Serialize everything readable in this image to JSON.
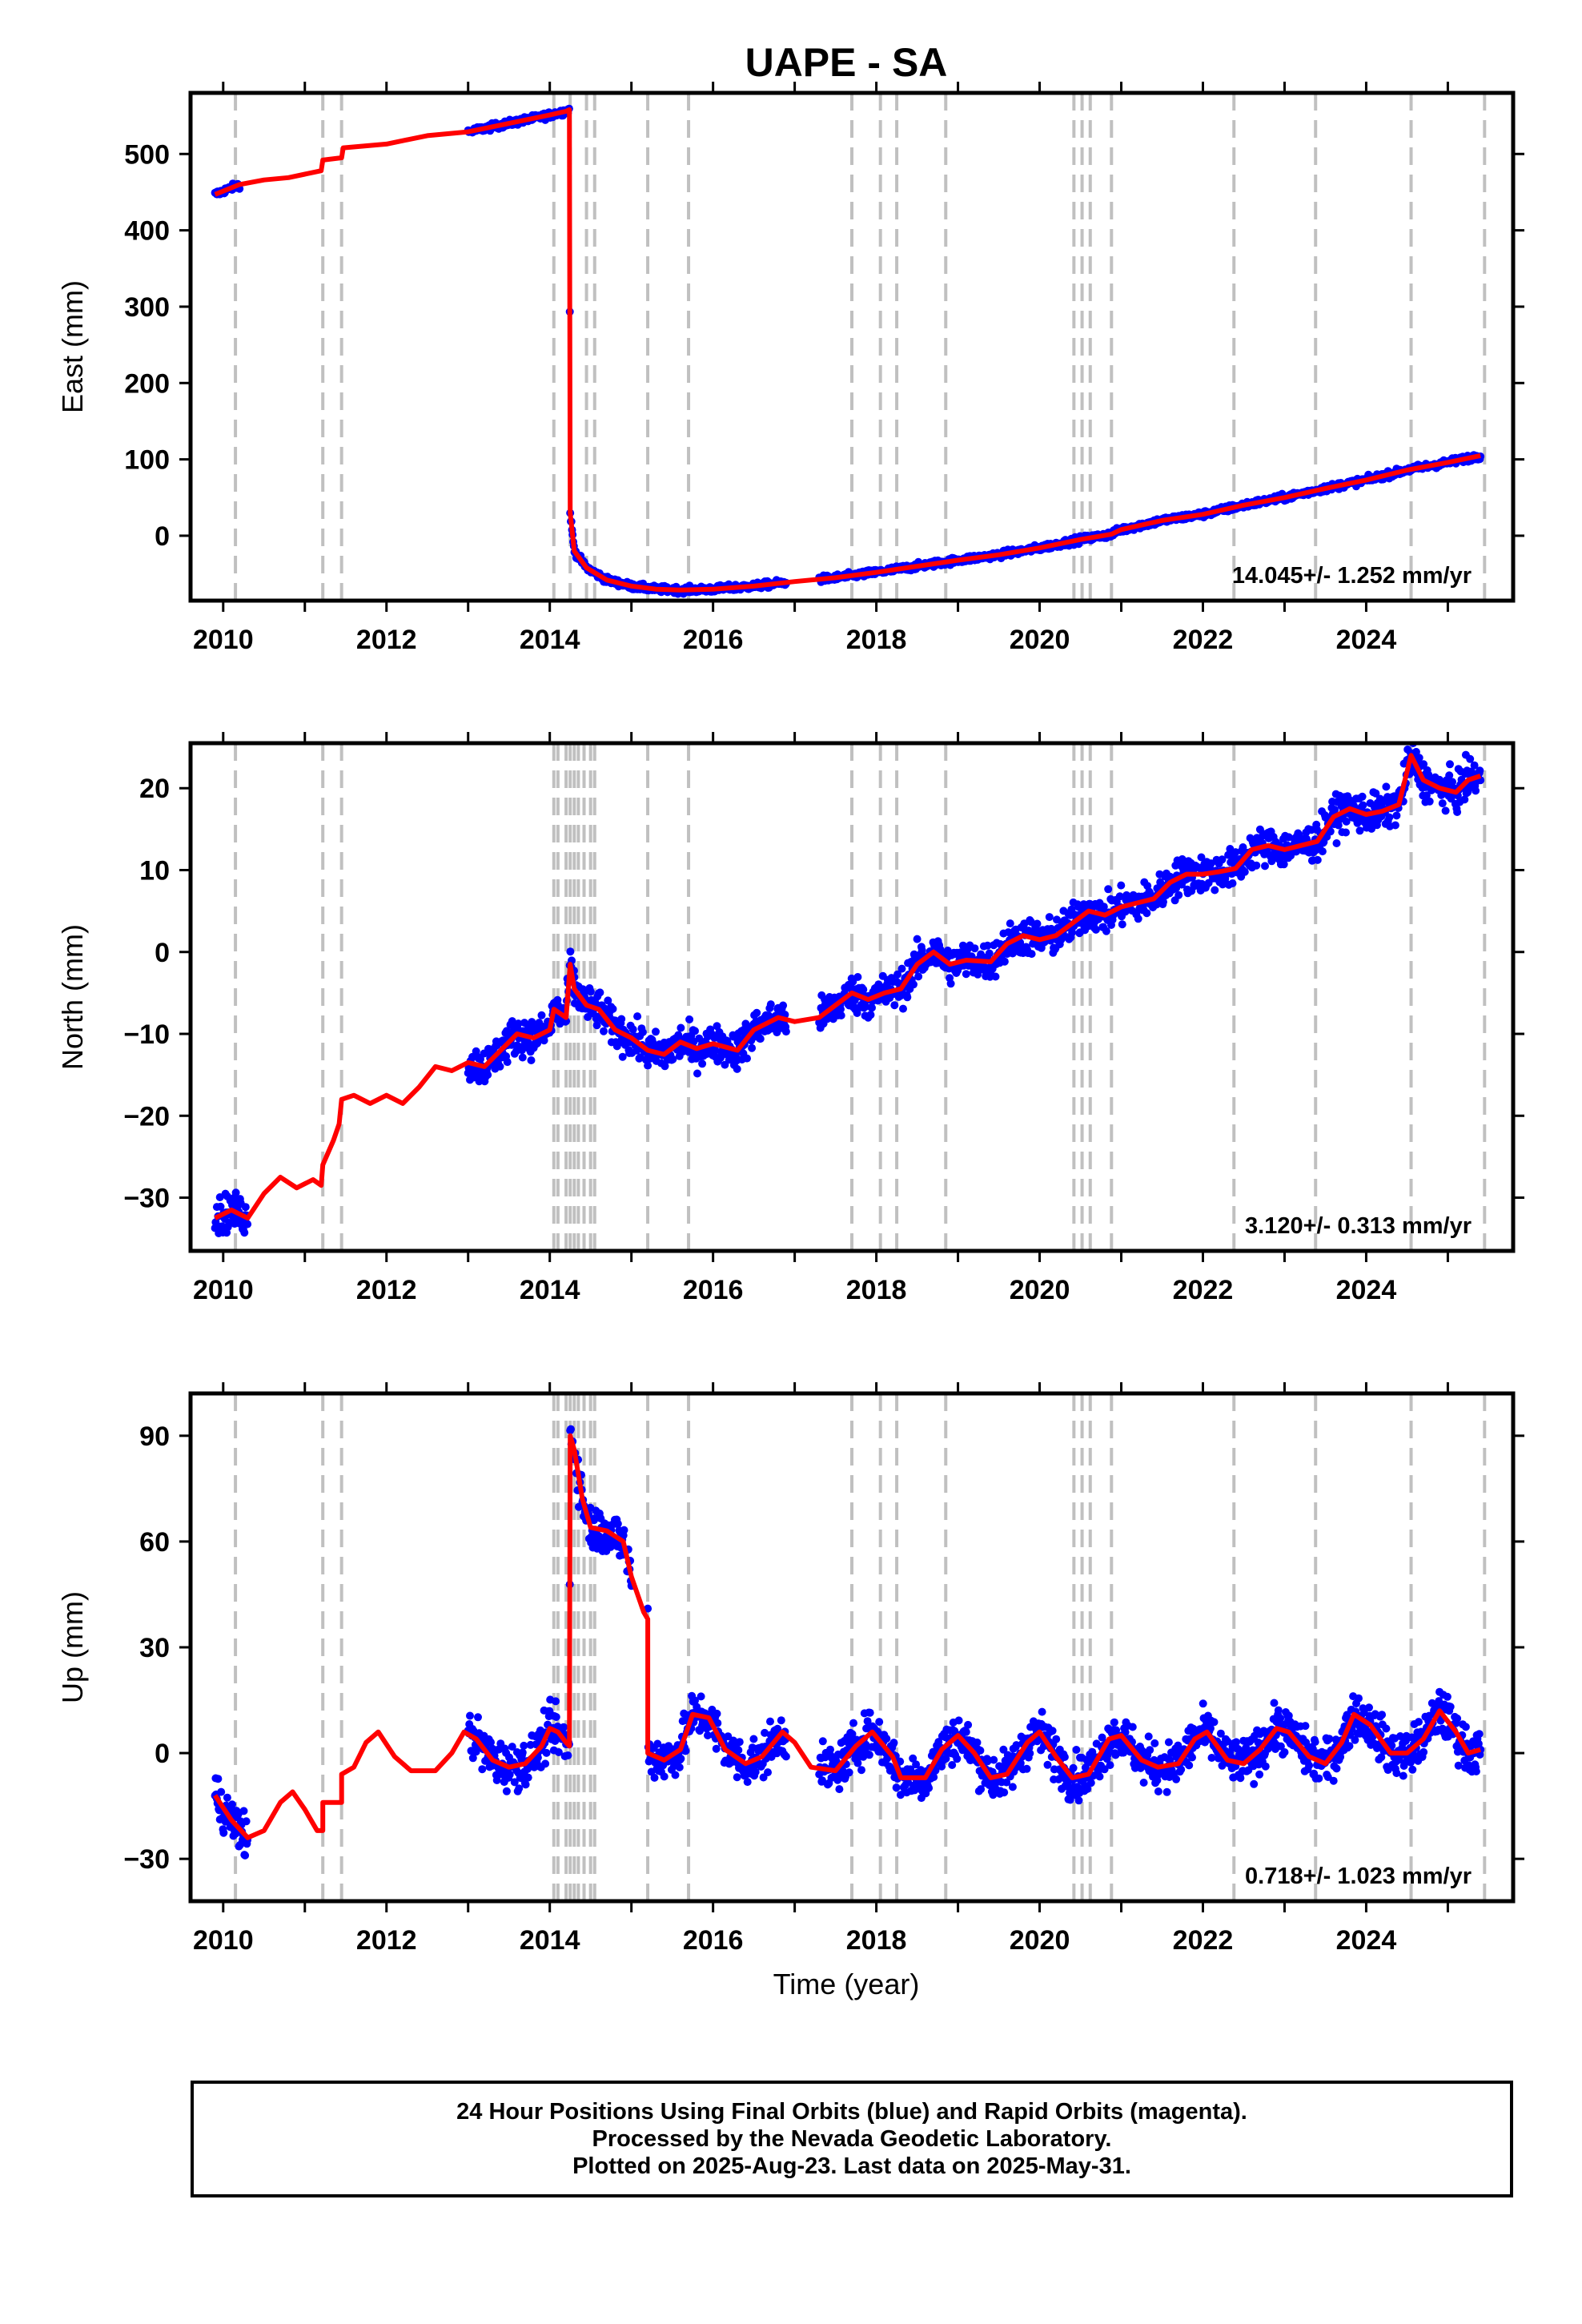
{
  "title": "UAPE - SA",
  "x_axis_label": "Time (year)",
  "x_tick_labels": [
    "2010",
    "2012",
    "2014",
    "2016",
    "2018",
    "2020",
    "2022",
    "2024"
  ],
  "caption": {
    "line1": "24 Hour Positions Using Final Orbits (blue) and Rapid Orbits (magenta).",
    "line2": "Processed by the Nevada Geodetic Laboratory.",
    "line3": "Plotted on 2025-Aug-23. Last data on 2025-May-31."
  },
  "colors": {
    "observations": "#0000ff",
    "model": "#ff0000",
    "events": "#c0c0c0",
    "frame": "#000000"
  },
  "chart_data": [
    {
      "type": "scatter",
      "title": "UAPE - SA",
      "xlabel": "Time (year)",
      "ylabel": "East (mm)",
      "xlim": [
        2009.6,
        2025.8
      ],
      "ylim": [
        -85,
        580
      ],
      "yticks": [
        0,
        100,
        200,
        300,
        400,
        500
      ],
      "ytick_labels": [
        "0",
        "100",
        "200",
        "300",
        "400",
        "500"
      ],
      "rate_text": "14.045+/- 1.252 mm/yr",
      "event_lines": [
        2010.15,
        2011.22,
        2011.45,
        2014.05,
        2014.25,
        2014.45,
        2014.55,
        2015.2,
        2015.7,
        2017.7,
        2018.05,
        2018.25,
        2018.85,
        2020.42,
        2020.52,
        2020.62,
        2020.88,
        2022.38,
        2023.38,
        2024.55,
        2025.45
      ],
      "data_segments": [
        [
          2009.9,
          2010.2
        ],
        [
          2013.0,
          2014.25
        ],
        [
          2014.25,
          2016.9
        ],
        [
          2017.3,
          2025.4
        ]
      ],
      "noise": 3,
      "model": [
        [
          2009.9,
          447
        ],
        [
          2010.2,
          460
        ],
        [
          2010.5,
          466
        ],
        [
          2010.8,
          469
        ],
        [
          2011.2,
          478
        ],
        [
          2011.22,
          492
        ],
        [
          2011.45,
          495
        ],
        [
          2011.47,
          508
        ],
        [
          2012.0,
          513
        ],
        [
          2012.5,
          524
        ],
        [
          2013.0,
          529
        ],
        [
          2013.5,
          540
        ],
        [
          2014.0,
          551
        ],
        [
          2014.2,
          556
        ],
        [
          2014.24,
          558
        ],
        [
          2014.25,
          30
        ],
        [
          2014.3,
          -20
        ],
        [
          2014.45,
          -42
        ],
        [
          2014.7,
          -58
        ],
        [
          2015.0,
          -66
        ],
        [
          2015.3,
          -70
        ],
        [
          2015.6,
          -71
        ],
        [
          2016.0,
          -70
        ],
        [
          2016.5,
          -66
        ],
        [
          2017.0,
          -60
        ],
        [
          2017.5,
          -55
        ],
        [
          2018.0,
          -48
        ],
        [
          2018.5,
          -40
        ],
        [
          2019.0,
          -32
        ],
        [
          2019.5,
          -25
        ],
        [
          2020.0,
          -16
        ],
        [
          2020.5,
          -5
        ],
        [
          2020.88,
          2
        ],
        [
          2021.0,
          8
        ],
        [
          2021.5,
          20
        ],
        [
          2022.0,
          28
        ],
        [
          2022.5,
          40
        ],
        [
          2023.0,
          50
        ],
        [
          2023.5,
          62
        ],
        [
          2024.0,
          73
        ],
        [
          2024.5,
          86
        ],
        [
          2025.0,
          96
        ],
        [
          2025.4,
          105
        ]
      ]
    },
    {
      "type": "scatter",
      "xlabel": "Time (year)",
      "ylabel": "North (mm)",
      "xlim": [
        2009.6,
        2025.8
      ],
      "ylim": [
        -36.5,
        25.5
      ],
      "yticks": [
        -30,
        -20,
        -10,
        0,
        10,
        20
      ],
      "ytick_labels": [
        "−30",
        "−20",
        "−10",
        "0",
        "10",
        "20"
      ],
      "rate_text": "3.120+/- 0.313 mm/yr",
      "event_lines": [
        2010.15,
        2011.22,
        2011.45,
        2014.05,
        2014.1,
        2014.2,
        2014.25,
        2014.3,
        2014.35,
        2014.42,
        2014.5,
        2014.55,
        2015.2,
        2015.7,
        2017.7,
        2018.05,
        2018.25,
        2018.85,
        2020.42,
        2020.52,
        2020.62,
        2020.88,
        2022.38,
        2023.38,
        2024.55,
        2025.45
      ],
      "data_segments": [
        [
          2009.9,
          2010.3
        ],
        [
          2013.0,
          2014.3
        ],
        [
          2014.3,
          2016.9
        ],
        [
          2017.3,
          2025.4
        ]
      ],
      "noise": 1.6,
      "model": [
        [
          2009.9,
          -32.5
        ],
        [
          2010.1,
          -31.5
        ],
        [
          2010.3,
          -32.5
        ],
        [
          2010.5,
          -29.5
        ],
        [
          2010.7,
          -27.5
        ],
        [
          2010.9,
          -28.8
        ],
        [
          2011.1,
          -27.8
        ],
        [
          2011.2,
          -28.5
        ],
        [
          2011.22,
          -26
        ],
        [
          2011.35,
          -23
        ],
        [
          2011.42,
          -21
        ],
        [
          2011.45,
          -18
        ],
        [
          2011.6,
          -17.5
        ],
        [
          2011.8,
          -18.5
        ],
        [
          2012.0,
          -17.5
        ],
        [
          2012.2,
          -18.5
        ],
        [
          2012.4,
          -16.5
        ],
        [
          2012.6,
          -14
        ],
        [
          2012.8,
          -14.5
        ],
        [
          2013.0,
          -13.5
        ],
        [
          2013.2,
          -14
        ],
        [
          2013.4,
          -12
        ],
        [
          2013.6,
          -10
        ],
        [
          2013.8,
          -10.5
        ],
        [
          2014.0,
          -9.5
        ],
        [
          2014.05,
          -7
        ],
        [
          2014.2,
          -8
        ],
        [
          2014.25,
          -1.5
        ],
        [
          2014.3,
          -4.5
        ],
        [
          2014.45,
          -6.5
        ],
        [
          2014.6,
          -7
        ],
        [
          2014.8,
          -9.5
        ],
        [
          2015.0,
          -10.5
        ],
        [
          2015.2,
          -12
        ],
        [
          2015.4,
          -12.5
        ],
        [
          2015.6,
          -11
        ],
        [
          2015.8,
          -11.8
        ],
        [
          2016.0,
          -11.2
        ],
        [
          2016.3,
          -12
        ],
        [
          2016.5,
          -9.5
        ],
        [
          2016.8,
          -8
        ],
        [
          2017.0,
          -8.5
        ],
        [
          2017.3,
          -8
        ],
        [
          2017.5,
          -6.5
        ],
        [
          2017.7,
          -5
        ],
        [
          2017.9,
          -5.8
        ],
        [
          2018.1,
          -5
        ],
        [
          2018.3,
          -4.5
        ],
        [
          2018.5,
          -1.5
        ],
        [
          2018.7,
          0
        ],
        [
          2018.9,
          -1.5
        ],
        [
          2019.1,
          -1
        ],
        [
          2019.4,
          -1.2
        ],
        [
          2019.6,
          1
        ],
        [
          2019.8,
          2
        ],
        [
          2020.0,
          1.5
        ],
        [
          2020.2,
          2
        ],
        [
          2020.4,
          3.5
        ],
        [
          2020.6,
          5
        ],
        [
          2020.8,
          4.5
        ],
        [
          2021.0,
          5.5
        ],
        [
          2021.2,
          6
        ],
        [
          2021.4,
          6.5
        ],
        [
          2021.6,
          8.5
        ],
        [
          2021.8,
          9.5
        ],
        [
          2022.0,
          9.5
        ],
        [
          2022.2,
          9.8
        ],
        [
          2022.4,
          10.2
        ],
        [
          2022.6,
          12.5
        ],
        [
          2022.8,
          13
        ],
        [
          2023.0,
          12.5
        ],
        [
          2023.2,
          13
        ],
        [
          2023.4,
          13.5
        ],
        [
          2023.6,
          16.5
        ],
        [
          2023.8,
          17.5
        ],
        [
          2024.0,
          16.8
        ],
        [
          2024.2,
          17.2
        ],
        [
          2024.4,
          18
        ],
        [
          2024.55,
          24
        ],
        [
          2024.7,
          21
        ],
        [
          2024.9,
          20
        ],
        [
          2025.1,
          19.5
        ],
        [
          2025.25,
          21
        ],
        [
          2025.4,
          21.5
        ]
      ]
    },
    {
      "type": "scatter",
      "xlabel": "Time (year)",
      "ylabel": "Up (mm)",
      "xlim": [
        2009.6,
        2025.8
      ],
      "ylim": [
        -42,
        102
      ],
      "yticks": [
        -30,
        0,
        30,
        60,
        90
      ],
      "ytick_labels": [
        "−30",
        "0",
        "30",
        "60",
        "90"
      ],
      "rate_text": "0.718+/- 1.023 mm/yr",
      "event_lines": [
        2010.15,
        2011.22,
        2011.45,
        2014.05,
        2014.1,
        2014.2,
        2014.25,
        2014.3,
        2014.35,
        2014.42,
        2014.5,
        2014.55,
        2015.2,
        2015.7,
        2017.7,
        2018.05,
        2018.25,
        2018.85,
        2020.42,
        2020.52,
        2020.62,
        2020.88,
        2022.38,
        2023.38,
        2024.55,
        2025.45
      ],
      "data_segments": [
        [
          2009.9,
          2010.3
        ],
        [
          2013.0,
          2014.25
        ],
        [
          2014.25,
          2015.0
        ],
        [
          2015.2,
          2016.9
        ],
        [
          2017.3,
          2025.4
        ]
      ],
      "noise": 4.5,
      "model": [
        [
          2009.9,
          -12
        ],
        [
          2010.1,
          -19
        ],
        [
          2010.3,
          -24
        ],
        [
          2010.5,
          -22
        ],
        [
          2010.7,
          -14
        ],
        [
          2010.85,
          -11
        ],
        [
          2011.0,
          -16
        ],
        [
          2011.15,
          -22
        ],
        [
          2011.22,
          -22
        ],
        [
          2011.22,
          -14
        ],
        [
          2011.45,
          -14
        ],
        [
          2011.45,
          -6
        ],
        [
          2011.6,
          -4
        ],
        [
          2011.75,
          3
        ],
        [
          2011.9,
          6
        ],
        [
          2012.1,
          -1
        ],
        [
          2012.3,
          -5
        ],
        [
          2012.6,
          -5
        ],
        [
          2012.8,
          0
        ],
        [
          2012.95,
          6
        ],
        [
          2013.1,
          4
        ],
        [
          2013.3,
          -2
        ],
        [
          2013.5,
          -4
        ],
        [
          2013.7,
          -3
        ],
        [
          2013.9,
          2
        ],
        [
          2014.0,
          7
        ],
        [
          2014.1,
          6
        ],
        [
          2014.2,
          3
        ],
        [
          2014.24,
          2
        ],
        [
          2014.25,
          90
        ],
        [
          2014.3,
          86
        ],
        [
          2014.4,
          72
        ],
        [
          2014.5,
          64
        ],
        [
          2014.7,
          63
        ],
        [
          2014.9,
          60
        ],
        [
          2015.0,
          50
        ],
        [
          2015.15,
          40
        ],
        [
          2015.2,
          38
        ],
        [
          2015.2,
          0
        ],
        [
          2015.4,
          -2
        ],
        [
          2015.6,
          1
        ],
        [
          2015.75,
          11
        ],
        [
          2015.95,
          10
        ],
        [
          2016.15,
          1
        ],
        [
          2016.4,
          -3
        ],
        [
          2016.6,
          -1
        ],
        [
          2016.85,
          6
        ],
        [
          2017.0,
          3
        ],
        [
          2017.2,
          -4
        ],
        [
          2017.5,
          -5
        ],
        [
          2017.75,
          2
        ],
        [
          2017.95,
          6
        ],
        [
          2018.2,
          -1
        ],
        [
          2018.3,
          -7
        ],
        [
          2018.6,
          -7
        ],
        [
          2018.8,
          1
        ],
        [
          2019.0,
          5
        ],
        [
          2019.2,
          0
        ],
        [
          2019.4,
          -7
        ],
        [
          2019.6,
          -6
        ],
        [
          2019.85,
          3
        ],
        [
          2020.0,
          6
        ],
        [
          2020.2,
          -1
        ],
        [
          2020.4,
          -7
        ],
        [
          2020.6,
          -6
        ],
        [
          2020.85,
          4
        ],
        [
          2021.0,
          5
        ],
        [
          2021.25,
          -2
        ],
        [
          2021.45,
          -4
        ],
        [
          2021.7,
          -3
        ],
        [
          2021.9,
          4
        ],
        [
          2022.05,
          6
        ],
        [
          2022.3,
          -2
        ],
        [
          2022.5,
          -3
        ],
        [
          2022.7,
          1
        ],
        [
          2022.9,
          7
        ],
        [
          2023.05,
          6
        ],
        [
          2023.3,
          -1
        ],
        [
          2023.5,
          -3
        ],
        [
          2023.7,
          3
        ],
        [
          2023.85,
          11
        ],
        [
          2024.05,
          8
        ],
        [
          2024.3,
          0
        ],
        [
          2024.5,
          0
        ],
        [
          2024.7,
          4
        ],
        [
          2024.9,
          12
        ],
        [
          2025.1,
          6
        ],
        [
          2025.25,
          0
        ],
        [
          2025.4,
          1
        ]
      ]
    }
  ]
}
